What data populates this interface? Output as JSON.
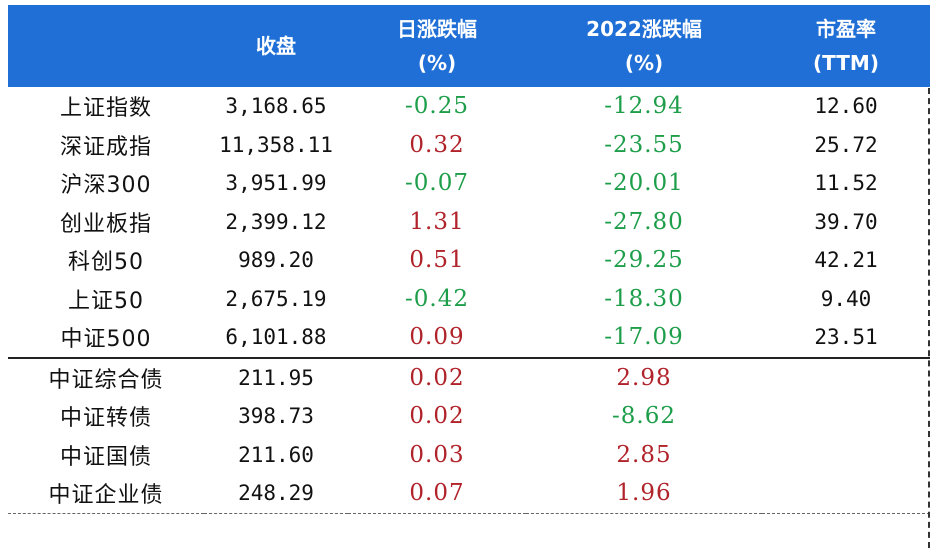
{
  "header": {
    "col_name": "",
    "col_close": "收盘",
    "col_daily_line1": "日涨跌幅",
    "col_daily_line2": "(%)",
    "col_ytd_line1": "2022涨跌幅",
    "col_ytd_line2": "(%)",
    "col_pe_line1": "市盈率",
    "col_pe_line2": "(TTM)"
  },
  "colors": {
    "header_bg": "#1f6fd6",
    "up": "#b0232a",
    "down": "#1e9e4a"
  },
  "rows": [
    {
      "name": "上证指数",
      "close": "3,168.65",
      "daily": "-0.25",
      "ytd": "-12.94",
      "pe": "12.60"
    },
    {
      "name": "深证成指",
      "close": "11,358.11",
      "daily": "0.32",
      "ytd": "-23.55",
      "pe": "25.72"
    },
    {
      "name": "沪深300",
      "close": "3,951.99",
      "daily": "-0.07",
      "ytd": "-20.01",
      "pe": "11.52"
    },
    {
      "name": "创业板指",
      "close": "2,399.12",
      "daily": "1.31",
      "ytd": "-27.80",
      "pe": "39.70"
    },
    {
      "name": "科创50",
      "close": "989.20",
      "daily": "0.51",
      "ytd": "-29.25",
      "pe": "42.21"
    },
    {
      "name": "上证50",
      "close": "2,675.19",
      "daily": "-0.42",
      "ytd": "-18.30",
      "pe": "9.40"
    },
    {
      "name": "中证500",
      "close": "6,101.88",
      "daily": "0.09",
      "ytd": "-17.09",
      "pe": "23.51"
    },
    {
      "name": "中证综合债",
      "close": "211.95",
      "daily": "0.02",
      "ytd": "2.98",
      "pe": ""
    },
    {
      "name": "中证转债",
      "close": "398.73",
      "daily": "0.02",
      "ytd": "-8.62",
      "pe": ""
    },
    {
      "name": "中证国债",
      "close": "211.60",
      "daily": "0.03",
      "ytd": "2.85",
      "pe": ""
    },
    {
      "name": "中证企业债",
      "close": "248.29",
      "daily": "0.07",
      "ytd": "1.96",
      "pe": ""
    }
  ]
}
